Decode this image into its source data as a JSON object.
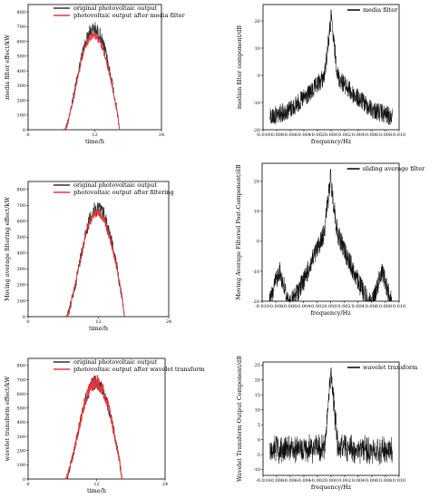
{
  "chart_data": [
    {
      "type": "line",
      "xlabel": "time/h",
      "ylabel": "media filter effect/kW",
      "xticks": [
        "0",
        "12",
        "24"
      ],
      "yticks": [
        "0",
        "100",
        "200",
        "300",
        "400",
        "500",
        "600",
        "700",
        "800"
      ],
      "xlim": [
        0,
        24
      ],
      "ylim": [
        0,
        850
      ],
      "legend": [
        "original photovoltaic output",
        "photovoltaic output after media filter"
      ],
      "legend_position": "top",
      "colors": {
        "original": "#333333",
        "filtered": "#e8343a"
      },
      "series": [
        {
          "name": "original photovoltaic output",
          "x": [
            0,
            6.5,
            7,
            8,
            9,
            10,
            11,
            12,
            13,
            14,
            15,
            16,
            16.5,
            24
          ],
          "values": [
            0,
            0,
            60,
            220,
            420,
            600,
            710,
            740,
            690,
            560,
            380,
            160,
            0,
            0
          ]
        },
        {
          "name": "photovoltaic output after media filter",
          "x": [
            0,
            6.5,
            7,
            8,
            9,
            10,
            11,
            12,
            13,
            14,
            15,
            16,
            16.5,
            24
          ],
          "values": [
            0,
            0,
            40,
            200,
            390,
            560,
            650,
            670,
            620,
            500,
            340,
            140,
            0,
            0
          ]
        }
      ]
    },
    {
      "type": "line",
      "xlabel": "frequency/Hz",
      "ylabel": "median filter component/dB",
      "xticks": [
        "-0.010",
        "-0.008",
        "-0.006",
        "-0.004",
        "-0.002",
        "0.000",
        "0.002",
        "0.004",
        "0.006",
        "0.008",
        "0.010"
      ],
      "yticks": [
        "-20",
        "-10",
        "0",
        "10",
        "20"
      ],
      "xlim": [
        -0.01,
        0.01
      ],
      "ylim": [
        -20,
        26
      ],
      "legend": [
        "media filter"
      ],
      "legend_position": "top-right",
      "series": [
        {
          "name": "media filter",
          "x": [
            -0.009,
            -0.006,
            -0.003,
            -0.001,
            0,
            0.001,
            0.003,
            0.006,
            0.009
          ],
          "values": [
            -12,
            -9,
            -3,
            3,
            24,
            3,
            -3,
            -9,
            -12
          ]
        }
      ]
    },
    {
      "type": "line",
      "xlabel": "time/h",
      "ylabel": "Moving average filtering effect/kW",
      "xticks": [
        "0",
        "12",
        "24"
      ],
      "yticks": [
        "0",
        "100",
        "200",
        "300",
        "400",
        "500",
        "600",
        "700",
        "800"
      ],
      "xlim": [
        0,
        24
      ],
      "ylim": [
        0,
        850
      ],
      "legend": [
        "original photovoltaic output",
        "photovoltaic output after filtering"
      ],
      "legend_position": "top",
      "colors": {
        "original": "#333333",
        "filtered": "#e8343a"
      },
      "series": [
        {
          "name": "original photovoltaic output",
          "x": [
            0,
            6.5,
            7,
            8,
            9,
            10,
            11,
            12,
            13,
            14,
            15,
            16,
            16.5,
            24
          ],
          "values": [
            0,
            0,
            60,
            220,
            420,
            600,
            710,
            740,
            690,
            560,
            380,
            160,
            0,
            0
          ]
        },
        {
          "name": "photovoltaic output after filtering",
          "x": [
            0,
            6.5,
            7,
            8,
            9,
            10,
            11,
            12,
            13,
            14,
            15,
            16,
            16.5,
            24
          ],
          "values": [
            0,
            0,
            40,
            210,
            400,
            570,
            660,
            680,
            630,
            510,
            350,
            150,
            0,
            0
          ]
        }
      ]
    },
    {
      "type": "line",
      "xlabel": "frequency/Hz",
      "ylabel": "Moving Average Filtered Post-Component/dB",
      "xticks": [
        "-0.010",
        "-0.008",
        "-0.006",
        "-0.004",
        "-0.002",
        "0.000",
        "0.002",
        "0.004",
        "0.006",
        "0.008",
        "0.010"
      ],
      "yticks": [
        "-20",
        "-10",
        "0",
        "10",
        "20"
      ],
      "xlim": [
        -0.01,
        0.01
      ],
      "ylim": [
        -20,
        26
      ],
      "legend": [
        "sliding average filter"
      ],
      "legend_position": "top-right",
      "series": [
        {
          "name": "sliding average filter",
          "x": [
            -0.009,
            -0.0075,
            -0.006,
            -0.004,
            -0.0025,
            -0.001,
            0,
            0.001,
            0.0025,
            0.004,
            0.006,
            0.0075,
            0.009
          ],
          "values": [
            -18,
            -6,
            -18,
            -10,
            -2,
            6,
            24,
            6,
            -2,
            -10,
            -18,
            -6,
            -18
          ]
        }
      ]
    },
    {
      "type": "line",
      "xlabel": "time/h",
      "ylabel": "wavelet transform effect/kW",
      "xticks": [
        "0",
        "12",
        "24"
      ],
      "yticks": [
        "0",
        "100",
        "200",
        "300",
        "400",
        "500",
        "600",
        "700",
        "800"
      ],
      "xlim": [
        0,
        24
      ],
      "ylim": [
        0,
        850
      ],
      "legend": [
        "original photovoltaic output",
        "photovoltaic output after wavelet transform"
      ],
      "legend_position": "top",
      "colors": {
        "original": "#333333",
        "filtered": "#e8343a"
      },
      "series": [
        {
          "name": "original photovoltaic output",
          "x": [
            0,
            6.5,
            7,
            8,
            9,
            10,
            11,
            12,
            13,
            14,
            15,
            16,
            16.5,
            24
          ],
          "values": [
            0,
            0,
            60,
            220,
            420,
            600,
            710,
            740,
            690,
            560,
            380,
            160,
            0,
            0
          ]
        },
        {
          "name": "photovoltaic output after wavelet transform",
          "x": [
            0,
            6.5,
            7,
            8,
            9,
            10,
            11,
            12,
            13,
            14,
            15,
            16,
            16.5,
            24
          ],
          "values": [
            0,
            0,
            60,
            220,
            420,
            600,
            710,
            740,
            690,
            560,
            380,
            160,
            0,
            0
          ]
        }
      ]
    },
    {
      "type": "line",
      "xlabel": "frequency/Hz",
      "ylabel": "Wavelet Transform Output Component/dB",
      "xticks": [
        "-0.010",
        "-0.008",
        "-0.006",
        "-0.004",
        "-0.002",
        "0.000",
        "0.002",
        "0.004",
        "0.006",
        "0.008",
        "0.010"
      ],
      "yticks": [
        "-10",
        "-5",
        "0",
        "5",
        "10",
        "15",
        "20",
        "25"
      ],
      "xlim": [
        -0.01,
        0.01
      ],
      "ylim": [
        -12,
        26
      ],
      "legend": [
        "wavelet transform"
      ],
      "legend_position": "top-right",
      "series": [
        {
          "name": "wavelet transform",
          "x": [
            -0.009,
            -0.005,
            -0.001,
            0,
            0.001,
            0.005,
            0.009
          ],
          "values": [
            -1,
            -1,
            0,
            24,
            0,
            -1,
            -1
          ]
        }
      ]
    }
  ]
}
